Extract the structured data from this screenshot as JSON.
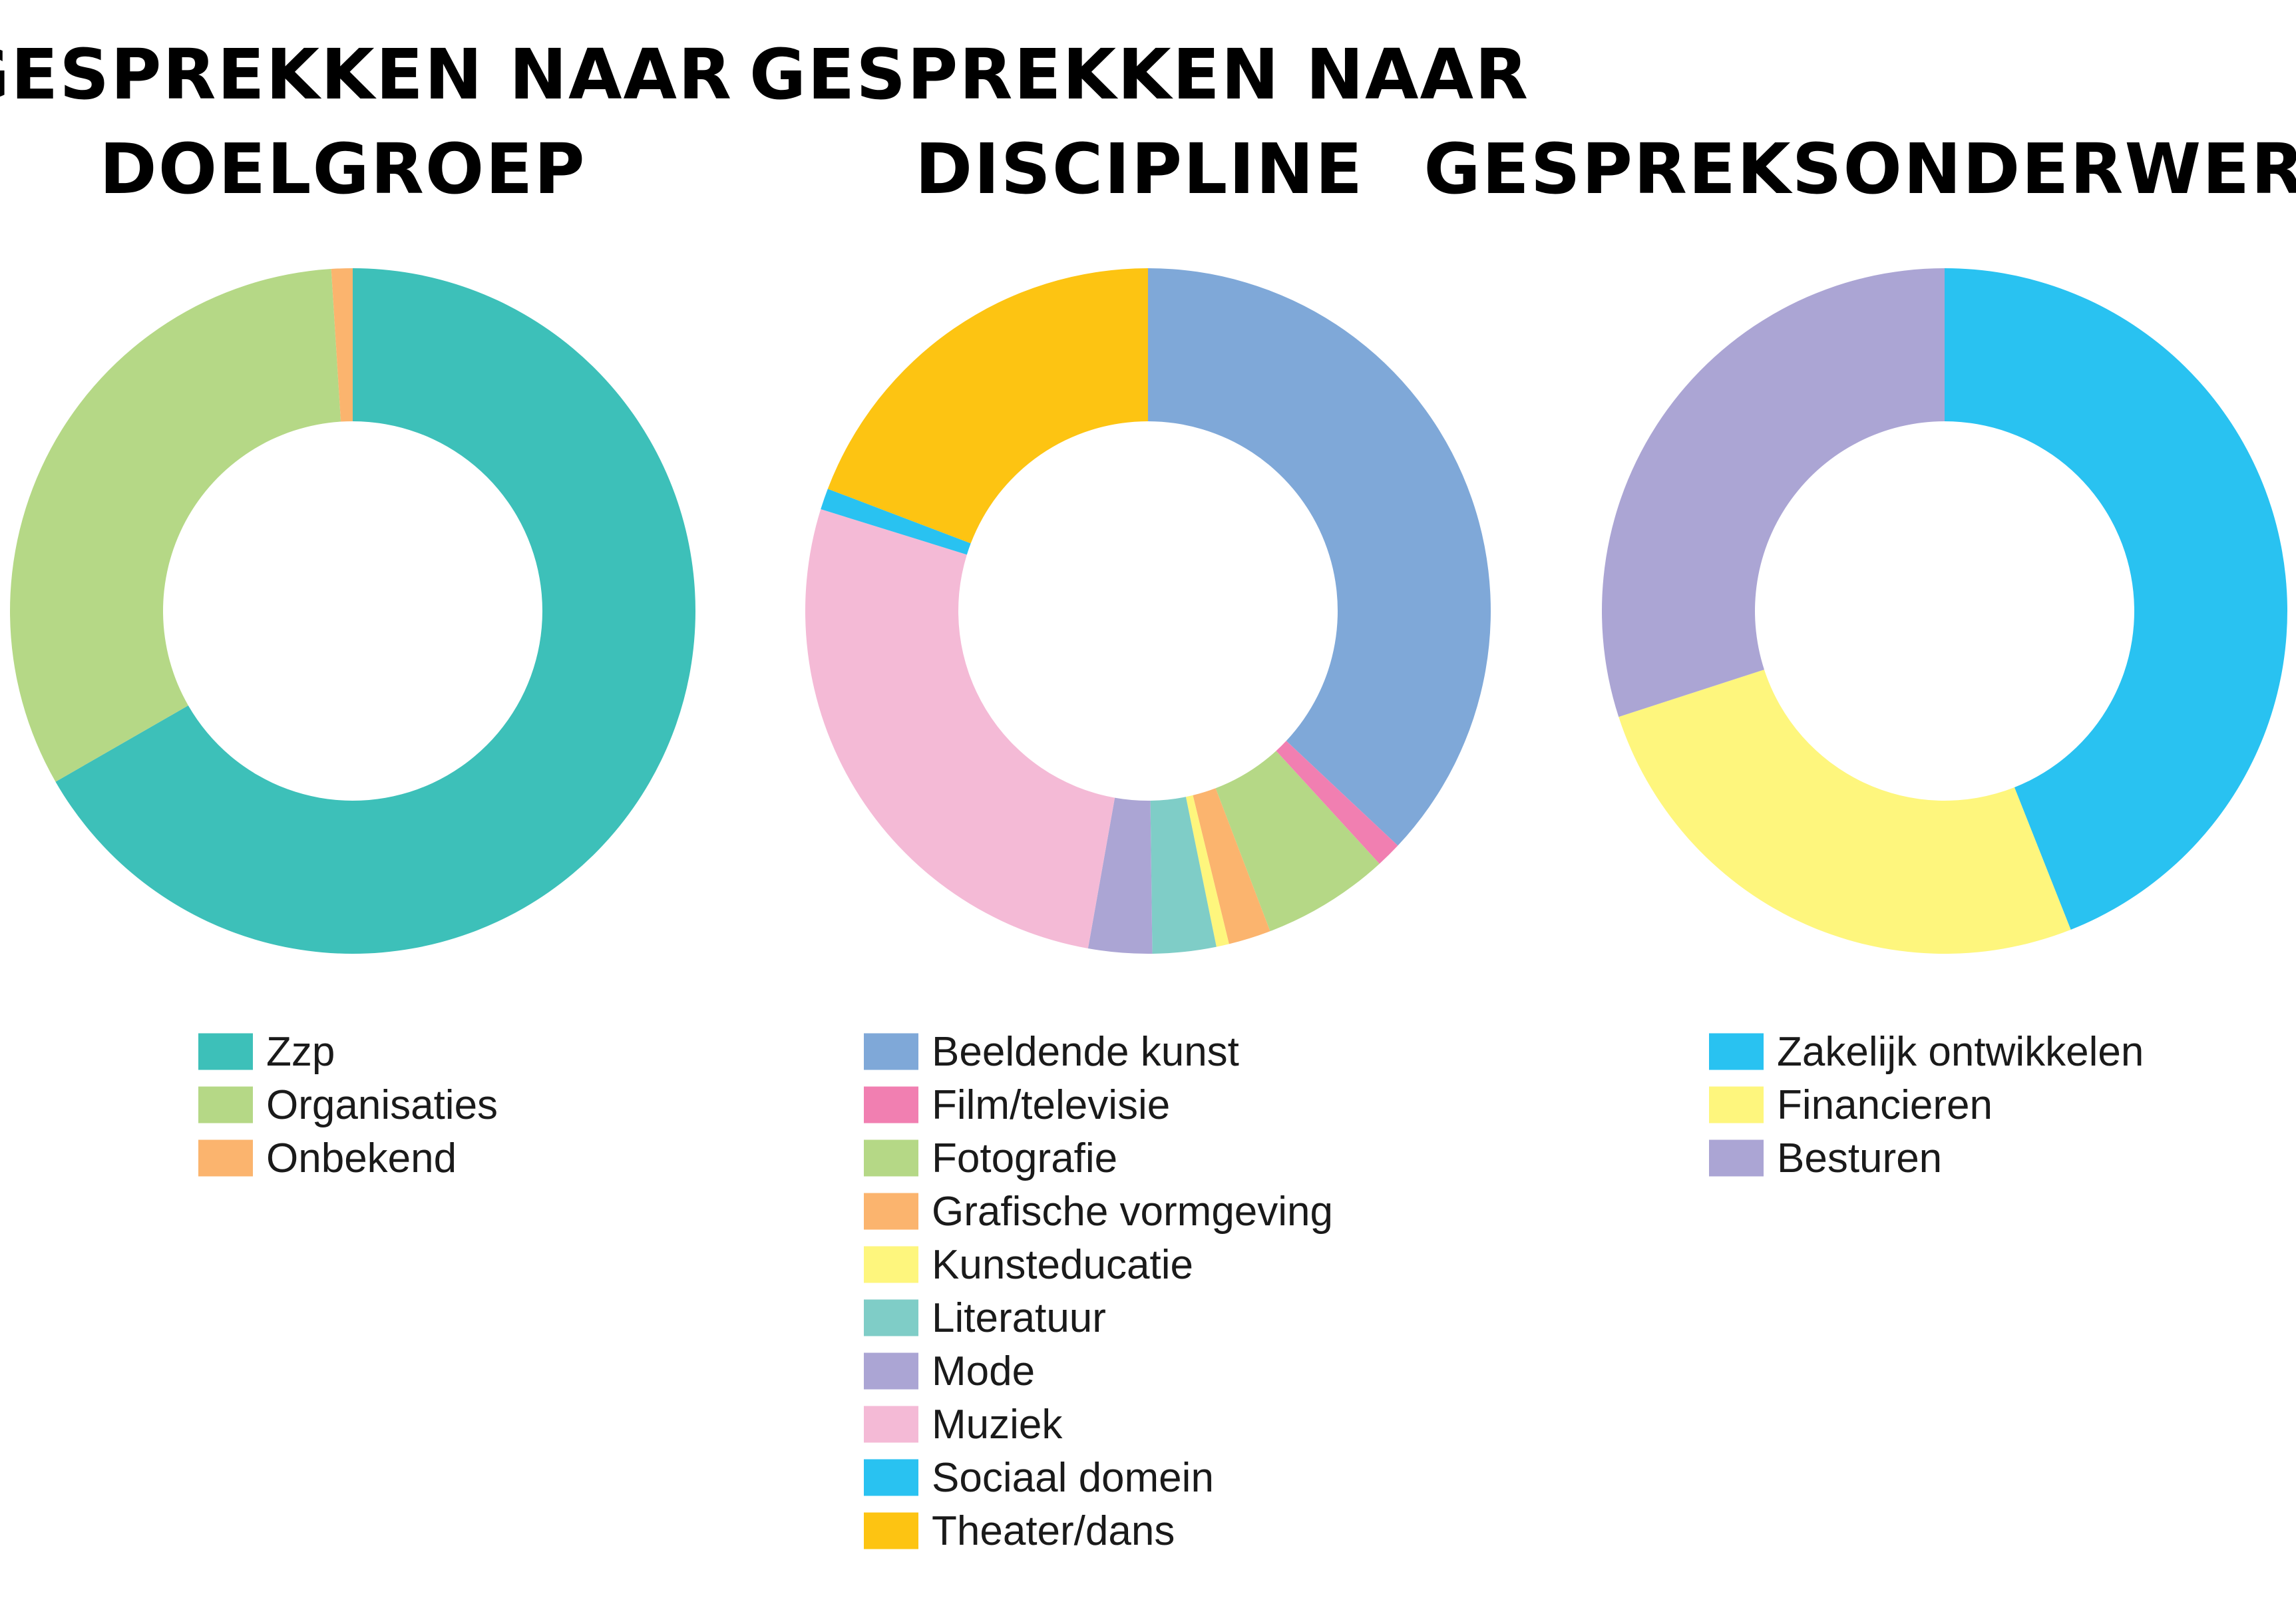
{
  "chart_data": [
    {
      "type": "donut",
      "title_lines": [
        "GESPREKKEN NAAR",
        "DOELGROEP"
      ],
      "slices": [
        {
          "label": "Zzp",
          "value": 66.7,
          "color": "#3dc0b9"
        },
        {
          "label": "Organisaties",
          "value": 32.3,
          "color": "#b5d886"
        },
        {
          "label": "Onbekend",
          "value": 1.0,
          "color": "#fbb46e"
        }
      ],
      "legend_position": "bottom"
    },
    {
      "type": "donut",
      "title_lines": [
        "GESPREKKEN NAAR",
        "DISCIPLINE"
      ],
      "slices": [
        {
          "label": "Beeldende kunst",
          "value": 37.0,
          "color": "#7fa8d8"
        },
        {
          "label": "Film/televisie",
          "value": 1.2,
          "color": "#f17fb1"
        },
        {
          "label": "Fotografie",
          "value": 6.0,
          "color": "#b5d886"
        },
        {
          "label": "Grafische vormgeving",
          "value": 2.0,
          "color": "#fbb46e"
        },
        {
          "label": "Kunsteducatie",
          "value": 0.6,
          "color": "#fef67d"
        },
        {
          "label": "Literatuur",
          "value": 3.0,
          "color": "#7fcdc7"
        },
        {
          "label": "Mode",
          "value": 3.0,
          "color": "#aba5d4"
        },
        {
          "label": "Muziek",
          "value": 27.0,
          "color": "#f4bad6"
        },
        {
          "label": "Sociaal domein",
          "value": 1.0,
          "color": "#29c2f1"
        },
        {
          "label": "Theater/dans",
          "value": 19.2,
          "color": "#fdc412"
        }
      ],
      "legend_position": "bottom"
    },
    {
      "type": "donut",
      "title_lines": [
        "GESPREKSONDERWERPEN"
      ],
      "slices": [
        {
          "label": "Zakelijk ontwikkelen",
          "value": 44.0,
          "color": "#29c2f1"
        },
        {
          "label": "Financieren",
          "value": 26.0,
          "color": "#fef67d"
        },
        {
          "label": "Besturen",
          "value": 30.0,
          "color": "#aba5d4"
        }
      ],
      "legend_position": "bottom"
    }
  ]
}
